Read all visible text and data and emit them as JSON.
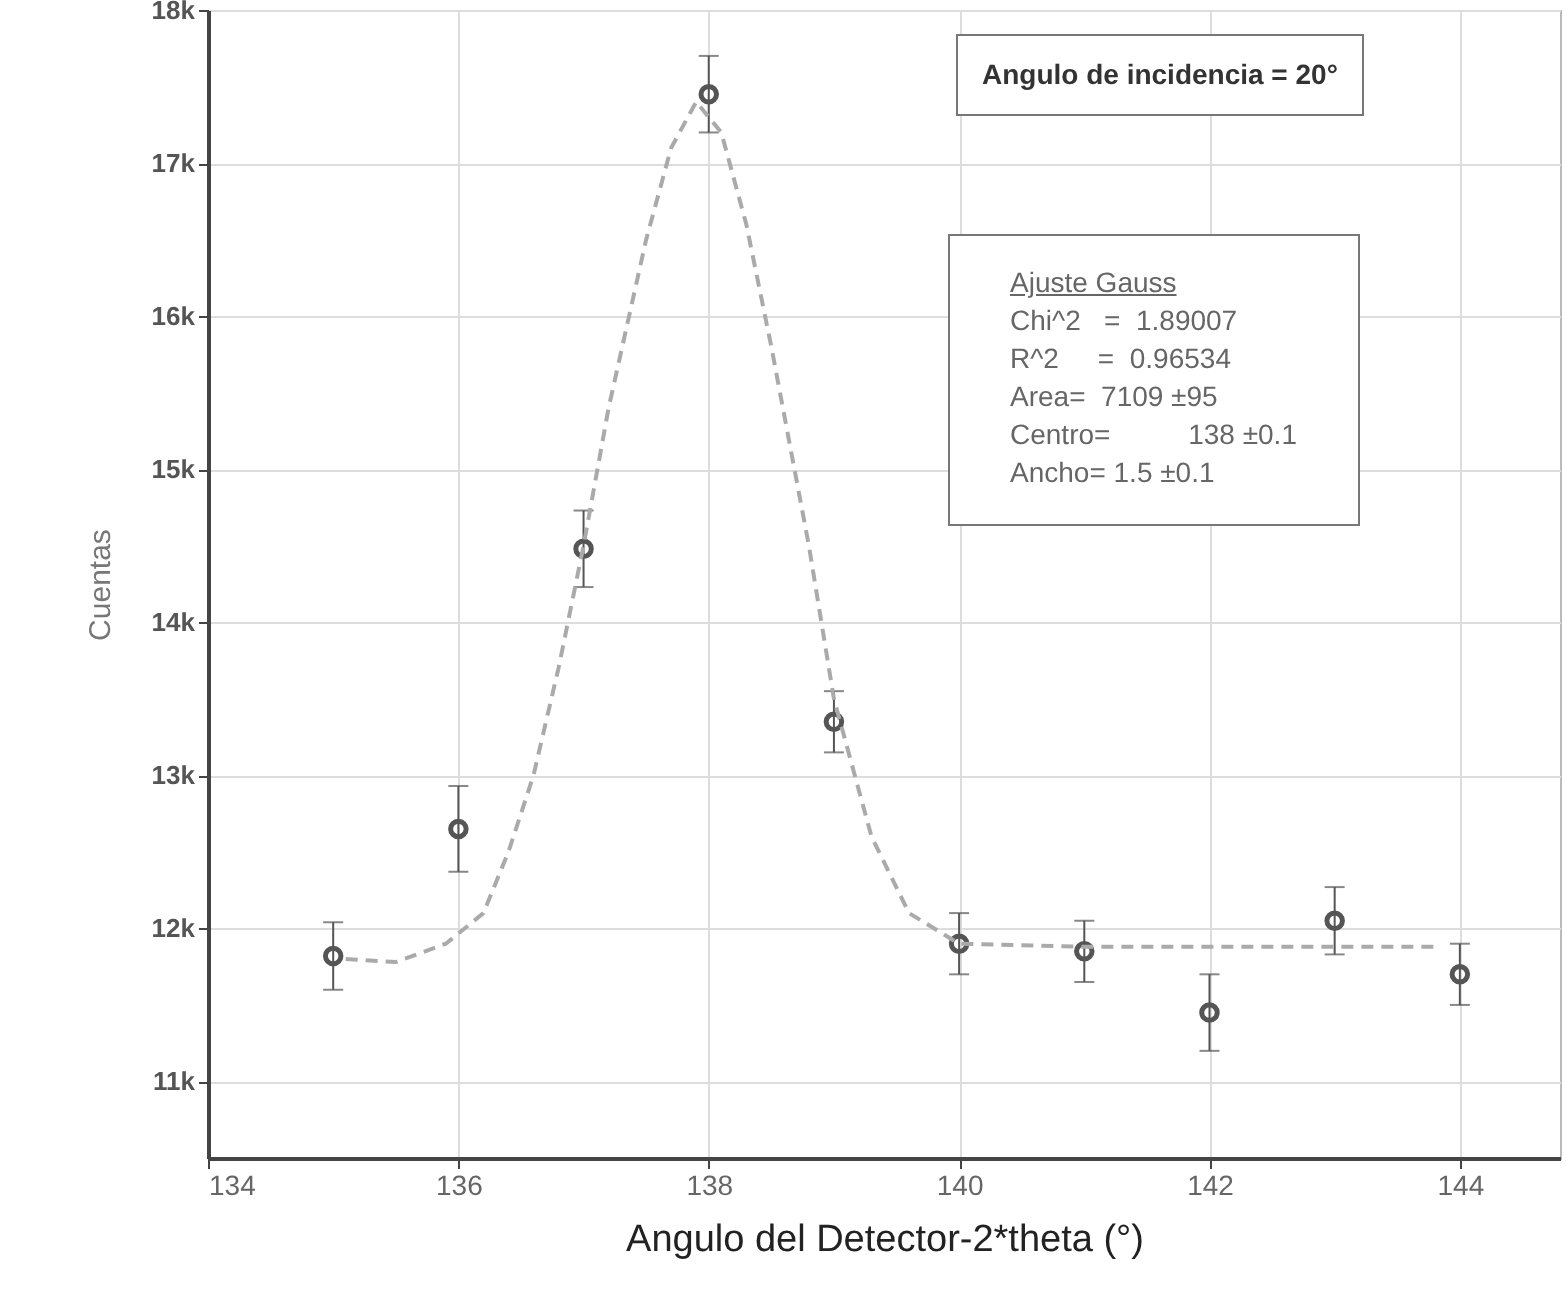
{
  "chart_data": {
    "type": "scatter",
    "xlabel": "Angulo del Detector-2*theta (°)",
    "ylabel": "Cuentas",
    "x": [
      135,
      136,
      137,
      138,
      139,
      140,
      141,
      142,
      143,
      144
    ],
    "series": [
      {
        "color": "#555555",
        "values": [
          11820,
          12650,
          14480,
          17450,
          13350,
          11900,
          11850,
          11450,
          12050,
          11700
        ],
        "errors": [
          220,
          280,
          250,
          250,
          200,
          200,
          200,
          250,
          220,
          200
        ],
        "marker": "circle"
      },
      {
        "type": "line",
        "color": "#aaaaaa",
        "line_style": "dashed",
        "marker": "none",
        "x": [
          135.1,
          135.5,
          135.9,
          136.2,
          136.4,
          136.6,
          136.8,
          137,
          137.2,
          137.5,
          137.7,
          137.9,
          138.1,
          138.3,
          138.5,
          138.8,
          139,
          139.3,
          139.6,
          140,
          141,
          142,
          143,
          143.8
        ],
        "values": [
          11800,
          11780,
          11900,
          12100,
          12500,
          13000,
          13700,
          14500,
          15400,
          16500,
          17100,
          17400,
          17200,
          16600,
          15800,
          14500,
          13500,
          12600,
          12100,
          11900,
          11880,
          11880,
          11880,
          11880
        ]
      }
    ],
    "xlim": [
      134,
      144.8
    ],
    "xticks": [
      134,
      136,
      138,
      140,
      142,
      144
    ],
    "ylim": [
      10500,
      18000
    ],
    "yticks": [
      {
        "value": 11000,
        "label": "11k"
      },
      {
        "value": 12000,
        "label": "12k"
      },
      {
        "value": 13000,
        "label": "13k"
      },
      {
        "value": 14000,
        "label": "14k"
      },
      {
        "value": 15000,
        "label": "15k"
      },
      {
        "value": 16000,
        "label": "16k"
      },
      {
        "value": 17000,
        "label": "17k"
      },
      {
        "value": 18000,
        "label": "18k"
      }
    ],
    "grid": true,
    "annotations": [
      "Angulo de incidencia = 20°",
      "Ajuste Gauss",
      "Chi^2   =  1.89007",
      "R^2     =  0.96534",
      "Area=  7109 ±95",
      "Centro=          138 ±0.1",
      "Ancho= 1.5 ±0.1"
    ]
  }
}
